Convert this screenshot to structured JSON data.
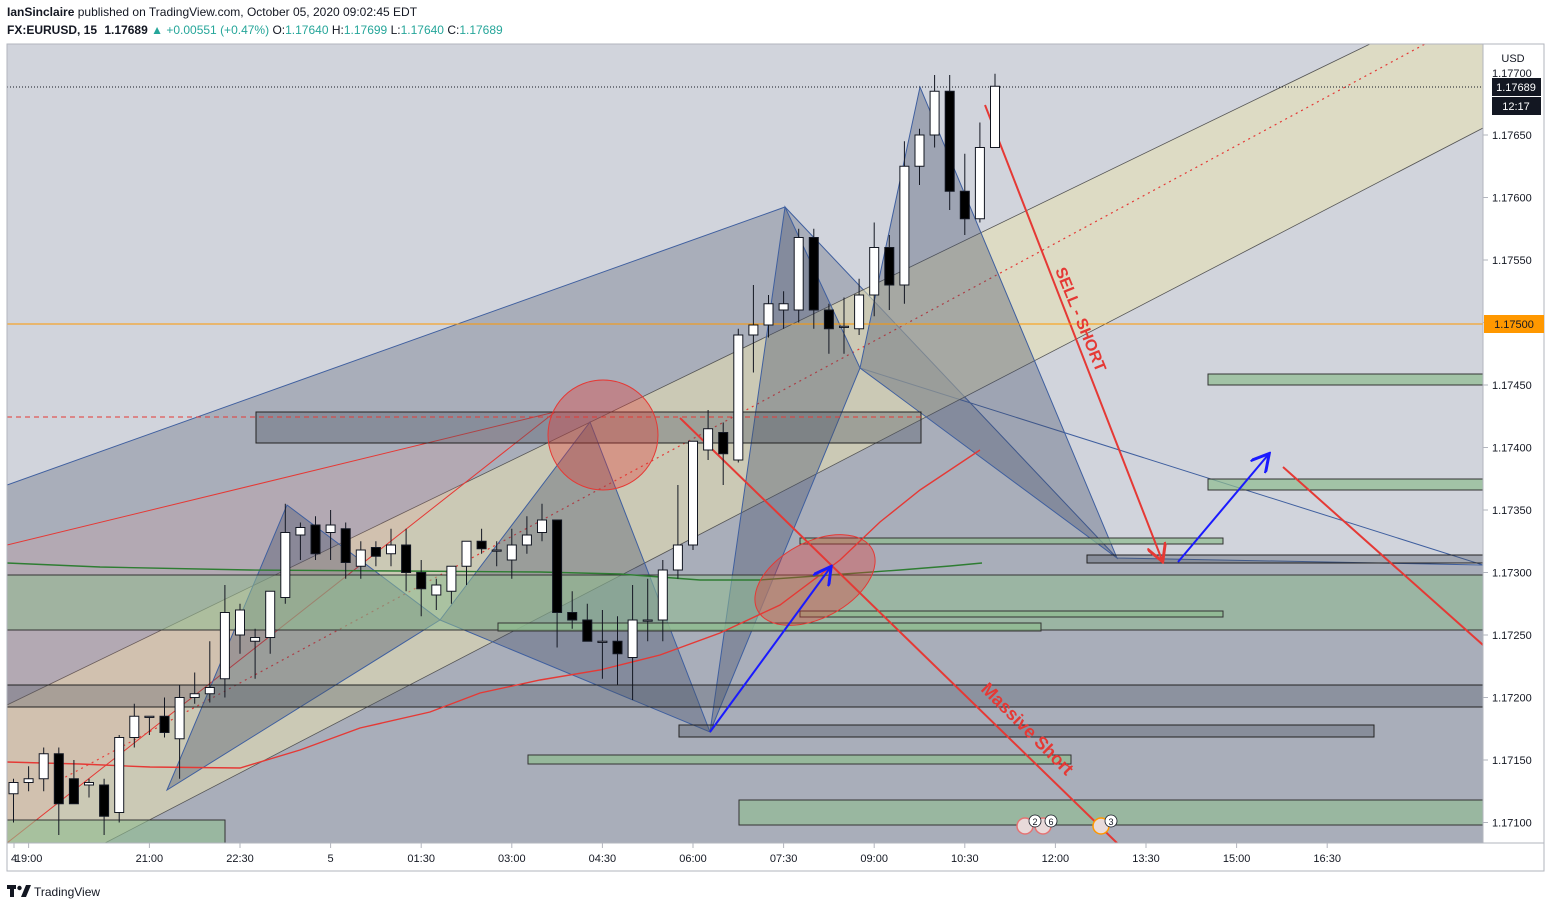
{
  "header": {
    "author": "IanSinclaire",
    "published_text": "published on TradingView.com, October 05, 2020 09:02:45 EDT",
    "symbol": "FX:EURUSD, 15",
    "last": "1.17689",
    "arrow": "▲",
    "change": "+0.00551 (+0.47%)",
    "o_label": "O:",
    "o": "1.17640",
    "h_label": "H:",
    "h": "1.17699",
    "l_label": "L:",
    "l": "1.17640",
    "c_label": "C:",
    "c": "1.17689"
  },
  "footer": {
    "brand": "TradingView",
    "logo_icon": "tradingview-logo-icon"
  },
  "colors": {
    "background": "#d1d4dc",
    "up_candle": "#ffffff",
    "down_candle": "#000000",
    "accent_orange": "#ff9800",
    "annotation_red": "#e53935",
    "annotation_blue": "#1a1aff",
    "channel_fill": "#e8e0b0",
    "zone_green": "#8fbc8f",
    "pattern_blue": "#3f5f9f"
  },
  "chart_data": {
    "type": "candlestick",
    "title": "FX:EURUSD, 15",
    "currency": "USD",
    "ylim": [
      1.1709,
      1.17765
    ],
    "y_ticks": [
      "1.17100",
      "1.17150",
      "1.17200",
      "1.17250",
      "1.17300",
      "1.17350",
      "1.17400",
      "1.17450",
      "1.17500",
      "1.17550",
      "1.17600",
      "1.17650"
    ],
    "x_ticks": [
      {
        "label": "4",
        "bar": -7
      },
      {
        "label": "19:00",
        "bar": 1
      },
      {
        "label": "21:00",
        "bar": 9
      },
      {
        "label": "22:30",
        "bar": 15
      },
      {
        "label": "5",
        "bar": 21
      },
      {
        "label": "01:30",
        "bar": 27
      },
      {
        "label": "03:00",
        "bar": 33
      },
      {
        "label": "04:30",
        "bar": 39
      },
      {
        "label": "06:00",
        "bar": 45
      },
      {
        "label": "07:30",
        "bar": 51
      },
      {
        "label": "09:00",
        "bar": 57
      },
      {
        "label": "10:30",
        "bar": 63
      },
      {
        "label": "12:00",
        "bar": 69
      },
      {
        "label": "13:30",
        "bar": 75
      },
      {
        "label": "15:00",
        "bar": 81
      },
      {
        "label": "16:30",
        "bar": 87
      }
    ],
    "price_labels": [
      {
        "value": 1.17689,
        "text": "1.17689",
        "countdown": "12:17"
      },
      {
        "value": 1.175,
        "text": "1.17500"
      }
    ],
    "top_partial_tick": "1.17700",
    "candles": [
      {
        "o": 1.17123,
        "h": 1.17135,
        "l": 1.171,
        "c": 1.17132
      },
      {
        "o": 1.17132,
        "h": 1.17145,
        "l": 1.17125,
        "c": 1.17135
      },
      {
        "o": 1.17135,
        "h": 1.1716,
        "l": 1.17125,
        "c": 1.17155
      },
      {
        "o": 1.17155,
        "h": 1.1716,
        "l": 1.1709,
        "c": 1.17115
      },
      {
        "o": 1.17135,
        "h": 1.1715,
        "l": 1.17115,
        "c": 1.17115
      },
      {
        "o": 1.1713,
        "h": 1.17135,
        "l": 1.1712,
        "c": 1.17132
      },
      {
        "o": 1.1713,
        "h": 1.17135,
        "l": 1.1709,
        "c": 1.17105
      },
      {
        "o": 1.17108,
        "h": 1.1717,
        "l": 1.171,
        "c": 1.17168
      },
      {
        "o": 1.17168,
        "h": 1.17195,
        "l": 1.1716,
        "c": 1.17185
      },
      {
        "o": 1.17185,
        "h": 1.17185,
        "l": 1.1717,
        "c": 1.17185
      },
      {
        "o": 1.17185,
        "h": 1.172,
        "l": 1.17168,
        "c": 1.17172
      },
      {
        "o": 1.17167,
        "h": 1.1721,
        "l": 1.17135,
        "c": 1.172
      },
      {
        "o": 1.172,
        "h": 1.1722,
        "l": 1.17195,
        "c": 1.17203
      },
      {
        "o": 1.17203,
        "h": 1.17245,
        "l": 1.17196,
        "c": 1.17208
      },
      {
        "o": 1.17215,
        "h": 1.1729,
        "l": 1.172,
        "c": 1.17268
      },
      {
        "o": 1.1725,
        "h": 1.17275,
        "l": 1.17235,
        "c": 1.1727
      },
      {
        "o": 1.17245,
        "h": 1.17255,
        "l": 1.17215,
        "c": 1.17248
      },
      {
        "o": 1.17248,
        "h": 1.17285,
        "l": 1.17235,
        "c": 1.17285
      },
      {
        "o": 1.1728,
        "h": 1.17355,
        "l": 1.17275,
        "c": 1.17332
      },
      {
        "o": 1.1733,
        "h": 1.1734,
        "l": 1.1731,
        "c": 1.17336
      },
      {
        "o": 1.17338,
        "h": 1.17345,
        "l": 1.1731,
        "c": 1.17315
      },
      {
        "o": 1.17332,
        "h": 1.1735,
        "l": 1.1731,
        "c": 1.17338
      },
      {
        "o": 1.17335,
        "h": 1.1734,
        "l": 1.17295,
        "c": 1.17308
      },
      {
        "o": 1.17305,
        "h": 1.17325,
        "l": 1.17295,
        "c": 1.17318
      },
      {
        "o": 1.1732,
        "h": 1.17325,
        "l": 1.17305,
        "c": 1.17313
      },
      {
        "o": 1.17315,
        "h": 1.17335,
        "l": 1.17305,
        "c": 1.17322
      },
      {
        "o": 1.17322,
        "h": 1.17335,
        "l": 1.17285,
        "c": 1.173
      },
      {
        "o": 1.173,
        "h": 1.1731,
        "l": 1.17265,
        "c": 1.17287
      },
      {
        "o": 1.17282,
        "h": 1.17295,
        "l": 1.1727,
        "c": 1.1729
      },
      {
        "o": 1.17285,
        "h": 1.17305,
        "l": 1.17275,
        "c": 1.17305
      },
      {
        "o": 1.17305,
        "h": 1.17325,
        "l": 1.1729,
        "c": 1.17325
      },
      {
        "o": 1.17325,
        "h": 1.17335,
        "l": 1.17315,
        "c": 1.17319
      },
      {
        "o": 1.17318,
        "h": 1.17325,
        "l": 1.17305,
        "c": 1.17318
      },
      {
        "o": 1.1731,
        "h": 1.17335,
        "l": 1.17295,
        "c": 1.17322
      },
      {
        "o": 1.17322,
        "h": 1.17345,
        "l": 1.17315,
        "c": 1.1733
      },
      {
        "o": 1.17332,
        "h": 1.17355,
        "l": 1.17325,
        "c": 1.17342
      },
      {
        "o": 1.17342,
        "h": 1.1734,
        "l": 1.1724,
        "c": 1.17268
      },
      {
        "o": 1.17268,
        "h": 1.17285,
        "l": 1.17255,
        "c": 1.17262
      },
      {
        "o": 1.17262,
        "h": 1.17275,
        "l": 1.17245,
        "c": 1.17245
      },
      {
        "o": 1.17245,
        "h": 1.1727,
        "l": 1.17215,
        "c": 1.17245
      },
      {
        "o": 1.17245,
        "h": 1.17265,
        "l": 1.1721,
        "c": 1.17235
      },
      {
        "o": 1.17232,
        "h": 1.1729,
        "l": 1.17198,
        "c": 1.17262
      },
      {
        "o": 1.17262,
        "h": 1.17295,
        "l": 1.17245,
        "c": 1.17262
      },
      {
        "o": 1.17262,
        "h": 1.1731,
        "l": 1.17245,
        "c": 1.17302
      },
      {
        "o": 1.17302,
        "h": 1.1737,
        "l": 1.17295,
        "c": 1.17322
      },
      {
        "o": 1.17322,
        "h": 1.17405,
        "l": 1.17318,
        "c": 1.17405
      },
      {
        "o": 1.17398,
        "h": 1.1743,
        "l": 1.1739,
        "c": 1.17415
      },
      {
        "o": 1.17412,
        "h": 1.1742,
        "l": 1.1737,
        "c": 1.17395
      },
      {
        "o": 1.1739,
        "h": 1.17495,
        "l": 1.17388,
        "c": 1.1749
      },
      {
        "o": 1.1749,
        "h": 1.1753,
        "l": 1.1746,
        "c": 1.17498
      },
      {
        "o": 1.17498,
        "h": 1.17522,
        "l": 1.17488,
        "c": 1.17515
      },
      {
        "o": 1.1751,
        "h": 1.17525,
        "l": 1.17495,
        "c": 1.17515
      },
      {
        "o": 1.1751,
        "h": 1.17575,
        "l": 1.175,
        "c": 1.17568
      },
      {
        "o": 1.17568,
        "h": 1.17575,
        "l": 1.17495,
        "c": 1.1751
      },
      {
        "o": 1.1751,
        "h": 1.17515,
        "l": 1.17475,
        "c": 1.17495
      },
      {
        "o": 1.17497,
        "h": 1.1752,
        "l": 1.17475,
        "c": 1.17497
      },
      {
        "o": 1.17495,
        "h": 1.17535,
        "l": 1.1749,
        "c": 1.17522
      },
      {
        "o": 1.17522,
        "h": 1.1758,
        "l": 1.17505,
        "c": 1.1756
      },
      {
        "o": 1.1756,
        "h": 1.1757,
        "l": 1.1751,
        "c": 1.1753
      },
      {
        "o": 1.1753,
        "h": 1.17645,
        "l": 1.17515,
        "c": 1.17625
      },
      {
        "o": 1.17625,
        "h": 1.17655,
        "l": 1.1761,
        "c": 1.1765
      },
      {
        "o": 1.1765,
        "h": 1.17698,
        "l": 1.1764,
        "c": 1.17685
      },
      {
        "o": 1.17685,
        "h": 1.17698,
        "l": 1.1759,
        "c": 1.17605
      },
      {
        "o": 1.17605,
        "h": 1.17635,
        "l": 1.1757,
        "c": 1.17583
      },
      {
        "o": 1.17583,
        "h": 1.1766,
        "l": 1.1758,
        "c": 1.1764
      },
      {
        "o": 1.1764,
        "h": 1.17699,
        "l": 1.1764,
        "c": 1.17689
      }
    ],
    "annotations": [
      {
        "text": "SELL - SHORT",
        "color": "#e53935"
      },
      {
        "text": "Massive Short",
        "color": "#e53935"
      }
    ],
    "event_badges": [
      "2",
      "6",
      "3"
    ]
  }
}
